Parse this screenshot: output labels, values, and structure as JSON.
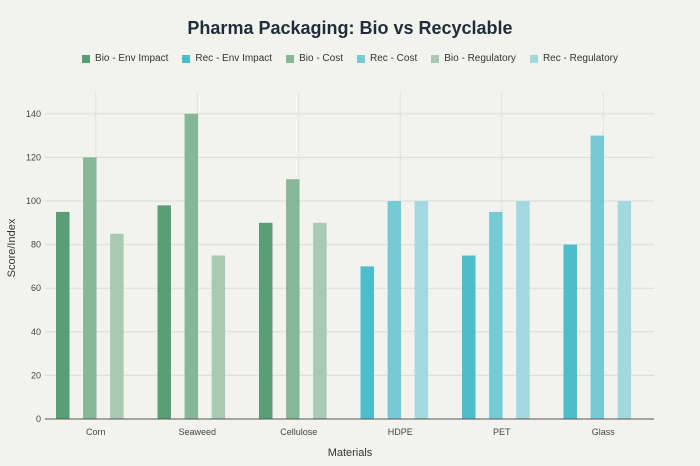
{
  "chart_data": {
    "type": "bar",
    "title": "Pharma Packaging: Bio vs Recyclable",
    "xlabel": "Materials",
    "ylabel": "Score/Index",
    "ylim": [
      0,
      150
    ],
    "yticks": [
      0,
      20,
      40,
      60,
      80,
      100,
      120,
      140
    ],
    "grid": true,
    "legend_position": "top",
    "categories": [
      "Corn",
      "Seaweed",
      "Cellulose",
      "HDPE",
      "PET",
      "Glass"
    ],
    "series": [
      {
        "name": "Bio - Env Impact",
        "color": "#5a9e76",
        "values": [
          95,
          98,
          90,
          null,
          null,
          null
        ]
      },
      {
        "name": "Rec - Env Impact",
        "color": "#4dbdcc",
        "values": [
          null,
          null,
          null,
          70,
          75,
          80
        ]
      },
      {
        "name": "Bio - Cost",
        "color": "#86b898",
        "values": [
          120,
          140,
          110,
          null,
          null,
          null
        ]
      },
      {
        "name": "Rec - Cost",
        "color": "#76cad6",
        "values": [
          null,
          null,
          null,
          100,
          95,
          130
        ]
      },
      {
        "name": "Bio - Regulatory",
        "color": "#a8cab2",
        "values": [
          85,
          75,
          90,
          null,
          null,
          null
        ]
      },
      {
        "name": "Rec - Regulatory",
        "color": "#a2d9e0",
        "values": [
          null,
          null,
          null,
          100,
          100,
          100
        ]
      }
    ]
  }
}
